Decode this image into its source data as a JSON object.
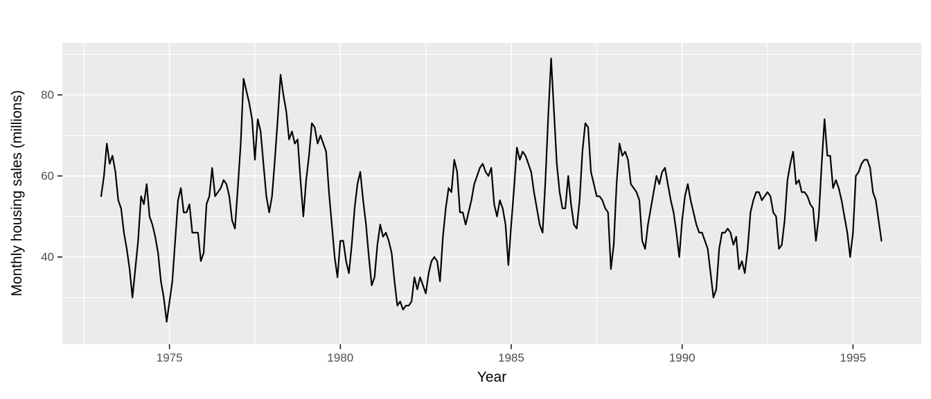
{
  "figure": {
    "y_axis": {
      "title": "Monthly housing sales (millions)",
      "tick_labels": [
        "80",
        "60",
        "40"
      ],
      "tick_values": [
        80,
        60,
        40
      ],
      "minor_gridline_values": [
        90,
        70,
        50,
        30
      ]
    },
    "x_axis": {
      "title": "Year",
      "tick_labels": [
        "1975",
        "1980",
        "1985",
        "1990",
        "1995"
      ],
      "tick_values": [
        1975,
        1980,
        1985,
        1990,
        1995
      ],
      "minor_gridline_values": [
        1972.5,
        1977.5,
        1982.5,
        1987.5,
        1992.5,
        1997.5
      ]
    },
    "colors": {
      "plot_background": "#FFFFFF",
      "panel_background": "#EBEBEB",
      "gridline": "#FFFFFF",
      "series_line": "#000000",
      "tick_mark": "#333333",
      "tick_text": "#4D4D4D",
      "axis_title_text": "#000000"
    }
  },
  "chart_data": {
    "type": "line",
    "title": "",
    "xlabel": "Year",
    "ylabel": "Monthly housing sales (millions)",
    "legend": "none",
    "grid": "on",
    "x_range_shown": [
      1971.86,
      1996.97
    ],
    "y_range_shown": [
      18.5,
      92.8
    ],
    "frequency": "monthly",
    "series": [
      {
        "name": "monthly-housing-sales",
        "start": "1973-01",
        "end": "1995-11",
        "values": [
          55,
          60,
          68,
          63,
          65,
          61,
          54,
          52,
          46,
          42,
          37,
          30,
          37,
          44,
          55,
          53,
          58,
          50,
          48,
          45,
          41,
          34,
          30,
          24,
          29,
          34,
          44,
          54,
          57,
          51,
          51,
          53,
          46,
          46,
          46,
          39,
          41,
          53,
          55,
          62,
          55,
          56,
          57,
          59,
          58,
          55,
          49,
          47,
          57,
          68,
          84,
          81,
          78,
          74,
          64,
          74,
          71,
          63,
          55,
          51,
          55,
          64,
          74,
          85,
          80,
          76,
          69,
          71,
          68,
          69,
          59,
          50,
          59,
          65,
          73,
          72,
          68,
          70,
          68,
          66,
          56,
          48,
          40,
          35,
          44,
          44,
          39,
          36,
          43,
          52,
          58,
          61,
          54,
          48,
          40,
          33,
          35,
          43,
          48,
          45,
          46,
          44,
          41,
          34,
          28,
          29,
          27,
          28,
          28,
          29,
          35,
          32,
          35,
          33,
          31,
          36,
          39,
          40,
          39,
          34,
          45,
          52,
          57,
          56,
          64,
          61,
          51,
          51,
          48,
          51,
          54,
          58,
          60,
          62,
          63,
          61,
          60,
          62,
          53,
          50,
          54,
          52,
          48,
          38,
          48,
          57,
          67,
          64,
          66,
          65,
          63,
          61,
          56,
          52,
          48,
          46,
          59,
          75,
          89,
          76,
          63,
          56,
          52,
          52,
          60,
          53,
          48,
          47,
          54,
          66,
          73,
          72,
          61,
          58,
          55,
          55,
          54,
          52,
          51,
          37,
          43,
          58,
          68,
          65,
          66,
          64,
          58,
          57,
          56,
          54,
          44,
          42,
          48,
          52,
          56,
          60,
          58,
          61,
          62,
          58,
          54,
          51,
          46,
          40,
          49,
          55,
          58,
          54,
          51,
          48,
          46,
          46,
          44,
          42,
          36,
          30,
          32,
          42,
          46,
          46,
          47,
          46,
          43,
          45,
          37,
          39,
          36,
          42,
          51,
          54,
          56,
          56,
          54,
          55,
          56,
          55,
          51,
          50,
          42,
          43,
          49,
          59,
          63,
          66,
          58,
          59,
          56,
          56,
          55,
          53,
          52,
          44,
          50,
          63,
          74,
          65,
          65,
          57,
          59,
          57,
          54,
          50,
          46,
          40,
          46,
          60,
          61,
          63,
          64,
          64,
          62,
          56,
          54,
          49,
          44
        ]
      }
    ]
  }
}
